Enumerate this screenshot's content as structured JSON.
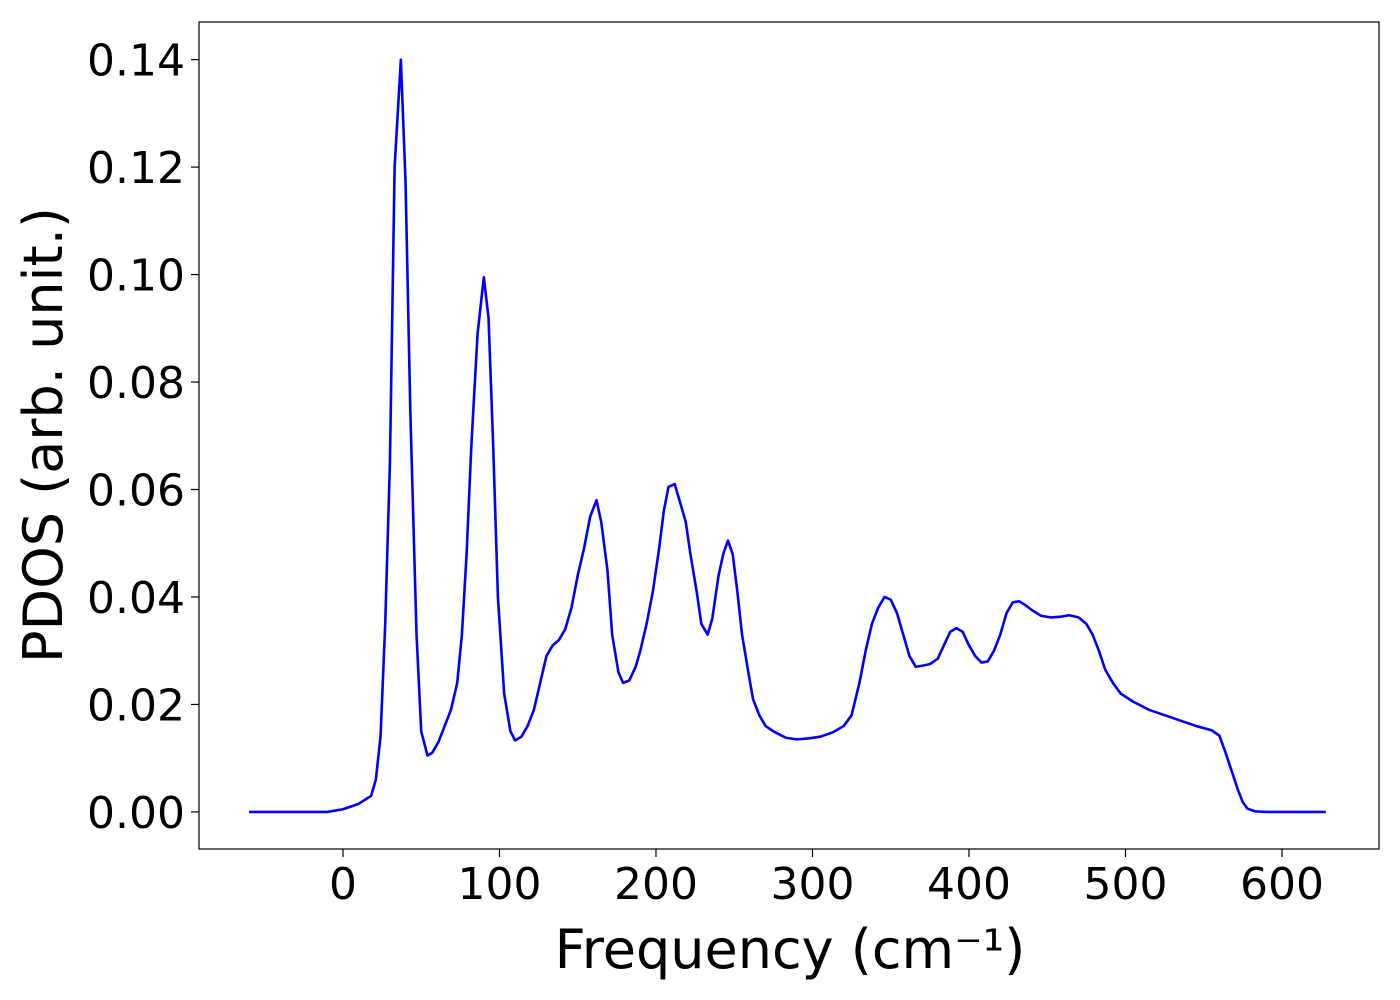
{
  "chart_data": {
    "type": "line",
    "x_label": "Frequency (cm⁻¹)",
    "y_label": "PDOS (arb. unit.)",
    "xlim": [
      -92,
      662
    ],
    "ylim": [
      -0.0069,
      0.147
    ],
    "xticks": [
      0,
      100,
      200,
      300,
      400,
      500,
      600
    ],
    "yticks": [
      {
        "value": 0,
        "label": "0.00"
      },
      0.02,
      0.04,
      0.06,
      0.08,
      {
        "value": 0.1,
        "label": "0.10"
      },
      0.12,
      0.14
    ],
    "series": [
      {
        "color": "#0000ff",
        "x": [
          -60,
          -10,
          0,
          10,
          18,
          21,
          24,
          27,
          30,
          33,
          37,
          40,
          43,
          47,
          50,
          54,
          57,
          61,
          65,
          69,
          73,
          76,
          79,
          82,
          86,
          90,
          93,
          96,
          99,
          103,
          107,
          110,
          114,
          118,
          122,
          126,
          130,
          134,
          138,
          142,
          146,
          150,
          154,
          158,
          162,
          165,
          169,
          172,
          176,
          179,
          183,
          187,
          190,
          194,
          198,
          202,
          205,
          208,
          212,
          215,
          219,
          222,
          226,
          229,
          233,
          236,
          240,
          243,
          246,
          249,
          252,
          255,
          259,
          262,
          266,
          270,
          275,
          283,
          290,
          298,
          305,
          313,
          320,
          325,
          330,
          334,
          338,
          342,
          346,
          350,
          354,
          358,
          362,
          366,
          370,
          375,
          380,
          384,
          388,
          392,
          396,
          400,
          404,
          408,
          412,
          416,
          420,
          424,
          428,
          432,
          436,
          440,
          446,
          452,
          458,
          464,
          470,
          475,
          479,
          483,
          487,
          492,
          497,
          505,
          515,
          525,
          535,
          545,
          555,
          560,
          564,
          568,
          572,
          575,
          578,
          583,
          590,
          628
        ],
        "values": [
          0,
          0,
          0.0005,
          0.0015,
          0.003,
          0.006,
          0.014,
          0.035,
          0.065,
          0.12,
          0.14,
          0.117,
          0.075,
          0.033,
          0.015,
          0.0105,
          0.011,
          0.013,
          0.016,
          0.019,
          0.024,
          0.033,
          0.048,
          0.068,
          0.089,
          0.0995,
          0.092,
          0.068,
          0.04,
          0.022,
          0.015,
          0.0133,
          0.014,
          0.016,
          0.019,
          0.024,
          0.029,
          0.031,
          0.032,
          0.034,
          0.038,
          0.044,
          0.049,
          0.055,
          0.058,
          0.054,
          0.045,
          0.033,
          0.026,
          0.024,
          0.0245,
          0.027,
          0.03,
          0.035,
          0.041,
          0.049,
          0.056,
          0.0605,
          0.061,
          0.058,
          0.054,
          0.048,
          0.041,
          0.035,
          0.033,
          0.036,
          0.044,
          0.048,
          0.0505,
          0.048,
          0.041,
          0.033,
          0.026,
          0.021,
          0.018,
          0.016,
          0.015,
          0.0138,
          0.0135,
          0.0137,
          0.014,
          0.0148,
          0.016,
          0.018,
          0.024,
          0.03,
          0.035,
          0.038,
          0.04,
          0.0395,
          0.037,
          0.033,
          0.029,
          0.027,
          0.0272,
          0.0275,
          0.0285,
          0.031,
          0.0335,
          0.0342,
          0.0335,
          0.031,
          0.029,
          0.0278,
          0.028,
          0.03,
          0.033,
          0.037,
          0.039,
          0.0392,
          0.0385,
          0.0376,
          0.0365,
          0.0362,
          0.0363,
          0.0366,
          0.0362,
          0.035,
          0.033,
          0.03,
          0.0265,
          0.024,
          0.022,
          0.0205,
          0.019,
          0.018,
          0.017,
          0.016,
          0.0152,
          0.0142,
          0.011,
          0.0075,
          0.004,
          0.0018,
          0.0006,
          0.0001,
          0,
          0
        ]
      }
    ]
  }
}
